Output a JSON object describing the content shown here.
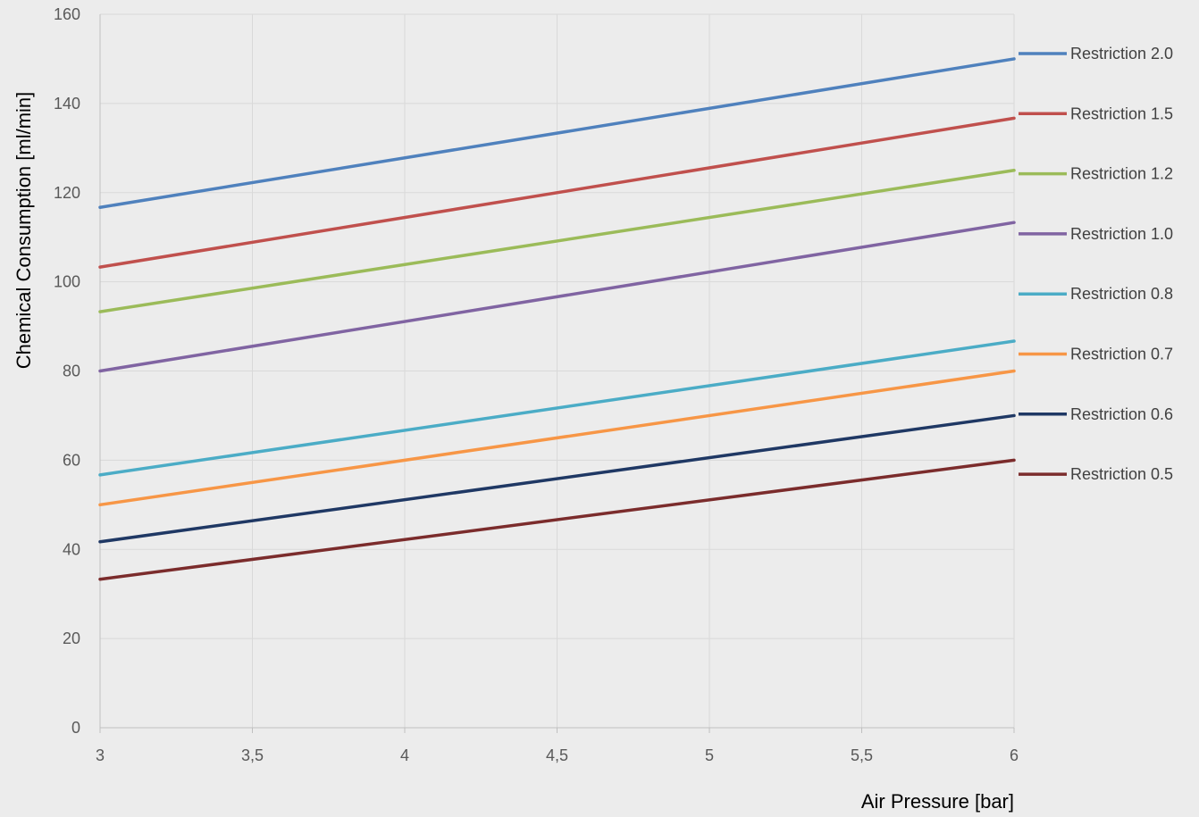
{
  "chart_data": {
    "type": "line",
    "title": "",
    "xlabel": "Air Pressure [bar]",
    "ylabel": "Chemical Consumption [ml/min]",
    "xlim": [
      3,
      6
    ],
    "ylim": [
      0,
      160
    ],
    "x_ticks": [
      "3",
      "3,5",
      "4",
      "4,5",
      "5",
      "5,5",
      "6"
    ],
    "x_tick_values": [
      3,
      3.5,
      4,
      4.5,
      5,
      5.5,
      6
    ],
    "y_ticks": [
      "0",
      "20",
      "40",
      "60",
      "80",
      "100",
      "120",
      "140",
      "160"
    ],
    "y_tick_values": [
      0,
      20,
      40,
      60,
      80,
      100,
      120,
      140,
      160
    ],
    "grid": true,
    "legend_position": "right",
    "x": [
      3,
      6
    ],
    "series": [
      {
        "name": "Restriction 2.0",
        "color": "#4f81bd",
        "values": [
          116.7,
          150.0
        ]
      },
      {
        "name": "Restriction 1.5",
        "color": "#c0504d",
        "values": [
          103.3,
          136.7
        ]
      },
      {
        "name": "Restriction 1.2",
        "color": "#9bbb59",
        "values": [
          93.3,
          125.0
        ]
      },
      {
        "name": "Restriction 1.0",
        "color": "#8064a2",
        "values": [
          80.0,
          113.3
        ]
      },
      {
        "name": "Restriction 0.8",
        "color": "#4bacc6",
        "values": [
          56.7,
          86.7
        ]
      },
      {
        "name": "Restriction 0.7",
        "color": "#f79646",
        "values": [
          50.0,
          80.0
        ]
      },
      {
        "name": "Restriction 0.6",
        "color": "#1f3864",
        "values": [
          41.7,
          70.0
        ]
      },
      {
        "name": "Restriction 0.5",
        "color": "#7b2c2c",
        "values": [
          33.3,
          60.0
        ]
      }
    ]
  }
}
